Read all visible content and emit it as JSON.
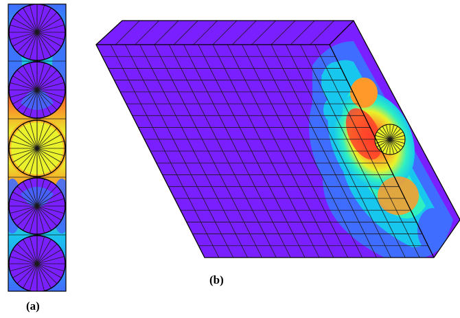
{
  "captions": {
    "a": "(a)",
    "b": "(b)"
  },
  "colors": {
    "background": "#7a1fff",
    "mesh_line": "#1a1a1a",
    "outline": "#000000",
    "contour_scale": [
      "#7a1fff",
      "#3f6dff",
      "#18c7ee",
      "#2ff0c0",
      "#e9f22a",
      "#ff9a2a",
      "#ff3a2a"
    ]
  }
}
